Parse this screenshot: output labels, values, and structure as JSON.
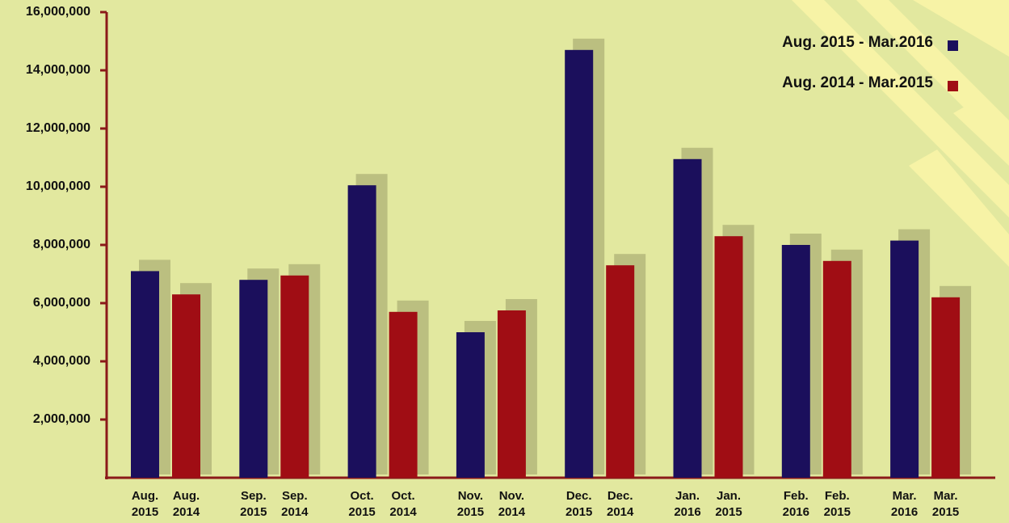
{
  "chart_data": {
    "type": "bar",
    "series": [
      {
        "name": "Aug. 2015 - Mar.2016",
        "color": "#1b0f5c",
        "labels": [
          [
            "Aug.",
            "2015"
          ],
          [
            "Sep.",
            "2015"
          ],
          [
            "Oct.",
            "2015"
          ],
          [
            "Nov.",
            "2015"
          ],
          [
            "Dec.",
            "2015"
          ],
          [
            "Jan.",
            "2016"
          ],
          [
            "Feb.",
            "2016"
          ],
          [
            "Mar.",
            "2016"
          ]
        ],
        "values": [
          7100000,
          6800000,
          10050000,
          5000000,
          14700000,
          10950000,
          8000000,
          8150000
        ]
      },
      {
        "name": "Aug. 2014 - Mar.2015",
        "color": "#a00d14",
        "labels": [
          [
            "Aug.",
            "2014"
          ],
          [
            "Sep.",
            "2014"
          ],
          [
            "Oct.",
            "2014"
          ],
          [
            "Nov.",
            "2014"
          ],
          [
            "Dec.",
            "2014"
          ],
          [
            "Jan.",
            "2015"
          ],
          [
            "Feb.",
            "2015"
          ],
          [
            "Mar.",
            "2015"
          ]
        ],
        "values": [
          6300000,
          6950000,
          5700000,
          5750000,
          7300000,
          8300000,
          7450000,
          6200000
        ]
      }
    ],
    "ylim": [
      0,
      16000000
    ],
    "yticks": [
      {
        "value": 2000000,
        "label": "2,000,000"
      },
      {
        "value": 4000000,
        "label": "4,000,000"
      },
      {
        "value": 6000000,
        "label": "6,000,000"
      },
      {
        "value": 8000000,
        "label": "8,000,000"
      },
      {
        "value": 10000000,
        "label": "10,000,000"
      },
      {
        "value": 12000000,
        "label": "12,000,000"
      },
      {
        "value": 14000000,
        "label": "14,000,000"
      },
      {
        "value": 16000000,
        "label": "16,000,000"
      }
    ],
    "legend": "top-right"
  }
}
